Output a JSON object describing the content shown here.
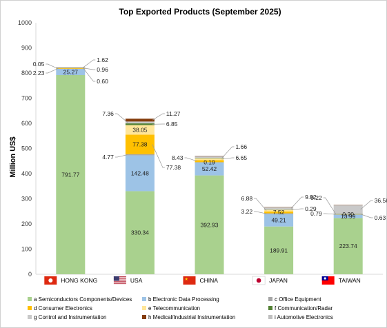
{
  "chart_data": {
    "type": "bar",
    "stacked": true,
    "title": "Top Exported Products (September 2025)",
    "xlabel": "",
    "ylabel": "Million US$",
    "ylim": [
      0,
      1000
    ],
    "yticks": [
      0,
      100,
      200,
      300,
      400,
      500,
      600,
      700,
      800,
      900,
      1000
    ],
    "grid": false,
    "legend_position": "bottom",
    "categories": [
      "HONG KONG",
      "USA",
      "CHINA",
      "JAPAN",
      "TAIWAN"
    ],
    "category_flags": [
      "hong-kong-flag-icon",
      "usa-flag-icon",
      "china-flag-icon",
      "japan-flag-icon",
      "taiwan-flag-icon"
    ],
    "series": [
      {
        "name": "a Semiconductors Components/Devices",
        "color": "#a9d18e",
        "values": [
          791.77,
          330.34,
          392.93,
          189.91,
          223.74
        ]
      },
      {
        "name": "b Electronic Data Processing",
        "color": "#9dc3e6",
        "values": [
          25.27,
          142.48,
          52.42,
          49.21,
          13.99
        ]
      },
      {
        "name": "c Office Equipment",
        "color": "#a5a5a5",
        "values": [
          0.05,
          4.77,
          0.19,
          3.22,
          0.79
        ]
      },
      {
        "name": "d Consumer Electronics",
        "color": "#ffc000",
        "values": [
          2.23,
          77.38,
          8.43,
          7.52,
          0.2
        ]
      },
      {
        "name": "e Telecommunication",
        "color": "#ffe699",
        "values": [
          0.96,
          38.05,
          6.65,
          6.88,
          0.63
        ]
      },
      {
        "name": "f Communication/Radar",
        "color": "#548235",
        "values": [
          0.6,
          6.85,
          1.66,
          0.29,
          0.22
        ]
      },
      {
        "name": "g Control and Instrumentation",
        "color": "#c9c9c9",
        "values": [
          1.62,
          7.36,
          8.43,
          9.92,
          36.56
        ]
      },
      {
        "name": "h Medical/Industrial Instrumentation",
        "color": "#843c0c",
        "values": [
          0.05,
          11.27,
          0.05,
          1.0,
          0.05
        ]
      },
      {
        "name": "i Automotive Electronics",
        "color": "#bfbfbf",
        "values": [
          0.05,
          0.0,
          0.0,
          0.0,
          0.0
        ]
      }
    ]
  }
}
